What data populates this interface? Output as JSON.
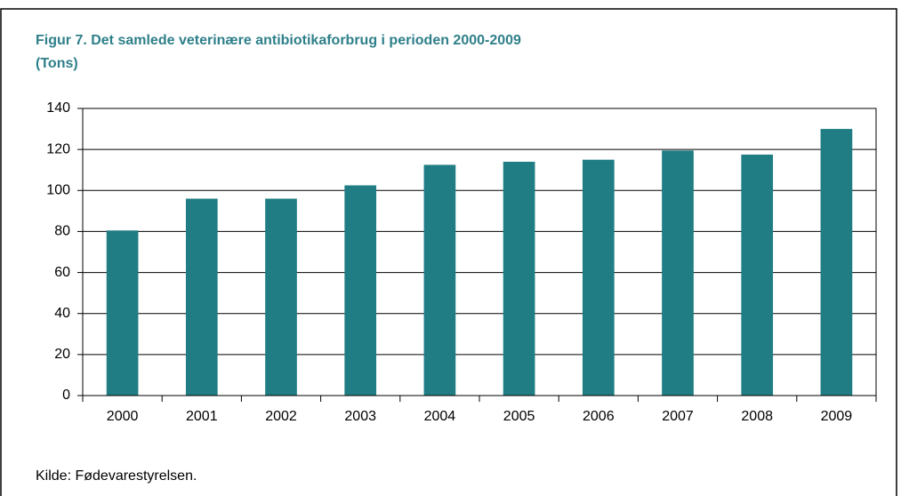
{
  "chart_data": {
    "type": "bar",
    "title": "Figur 7. Det samlede veterinære antibiotikaforbrug i perioden 2000-2009",
    "subtitle": "(Tons)",
    "categories": [
      "2000",
      "2001",
      "2002",
      "2003",
      "2004",
      "2005",
      "2006",
      "2007",
      "2008",
      "2009"
    ],
    "values": [
      80.5,
      96,
      96,
      102.5,
      112.5,
      114,
      115,
      119.5,
      117.5,
      130
    ],
    "color": "#1f7d83",
    "ylim": [
      0,
      140
    ],
    "yticks": [
      0,
      20,
      40,
      60,
      80,
      100,
      120,
      140
    ],
    "grid": true,
    "source": "Kilde:  Fødevarestyrelsen."
  }
}
